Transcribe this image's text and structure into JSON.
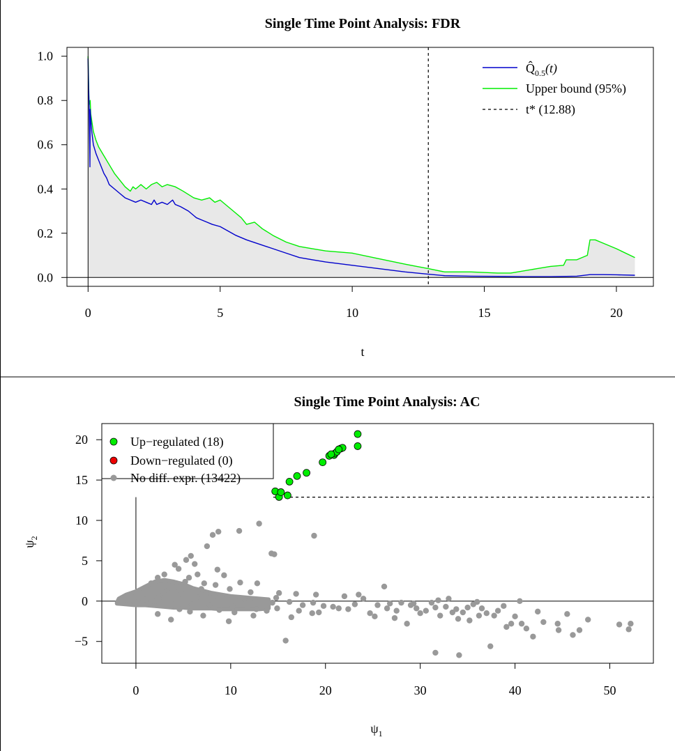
{
  "chart_data": [
    {
      "type": "line",
      "title": "Single Time Point Analysis: FDR",
      "xlabel": "t",
      "ylabel": "",
      "xlim": [
        -0.8,
        21.4
      ],
      "ylim": [
        -0.04,
        1.04
      ],
      "xticks": [
        "0",
        "5",
        "10",
        "15",
        "20"
      ],
      "yticks": [
        "0.0",
        "0.2",
        "0.4",
        "0.6",
        "0.8",
        "1.0"
      ],
      "legend_position": "top-right",
      "legend": [
        {
          "label": "Q̂",
          "sub": "0.5",
          "suffix": "(t)",
          "color": "#0000cc",
          "style": "solid"
        },
        {
          "label": "Upper bound (95%)",
          "color": "#00ee00",
          "style": "solid"
        },
        {
          "label": "t* (12.88)",
          "color": "#000000",
          "style": "dashed"
        }
      ],
      "vline": 12.88,
      "hline": 0,
      "shaded_area_color": "#e8e8e8",
      "series": [
        {
          "name": "Q̂_0.5(t)",
          "color": "#0000cc",
          "x": [
            0.0,
            0.02,
            0.04,
            0.06,
            0.07,
            0.08,
            0.1,
            0.14,
            0.2,
            0.3,
            0.4,
            0.5,
            0.6,
            0.7,
            0.8,
            1.0,
            1.2,
            1.4,
            1.6,
            1.8,
            2.0,
            2.2,
            2.4,
            2.5,
            2.6,
            2.8,
            3.0,
            3.2,
            3.3,
            3.5,
            3.8,
            4.0,
            4.1,
            4.3,
            4.5,
            4.7,
            5.0,
            5.3,
            5.6,
            6.0,
            6.5,
            7.0,
            7.5,
            8.0,
            8.5,
            9.0,
            10.0,
            11.0,
            12.0,
            12.88,
            13.5,
            14.5,
            15.5,
            16.5,
            17.5,
            18.5,
            19.0,
            19.5,
            20.0,
            20.7
          ],
          "y": [
            0.99,
            0.85,
            0.78,
            0.6,
            0.5,
            0.76,
            0.72,
            0.66,
            0.6,
            0.56,
            0.53,
            0.5,
            0.47,
            0.45,
            0.42,
            0.4,
            0.38,
            0.36,
            0.35,
            0.34,
            0.35,
            0.34,
            0.33,
            0.35,
            0.33,
            0.34,
            0.33,
            0.35,
            0.33,
            0.32,
            0.3,
            0.28,
            0.27,
            0.26,
            0.25,
            0.24,
            0.23,
            0.21,
            0.19,
            0.17,
            0.15,
            0.13,
            0.11,
            0.09,
            0.08,
            0.07,
            0.055,
            0.04,
            0.025,
            0.015,
            0.008,
            0.006,
            0.005,
            0.004,
            0.004,
            0.006,
            0.013,
            0.013,
            0.012,
            0.01
          ]
        },
        {
          "name": "Upper bound (95%)",
          "color": "#00ee00",
          "x": [
            0.0,
            0.04,
            0.08,
            0.1,
            0.15,
            0.2,
            0.3,
            0.4,
            0.6,
            0.8,
            1.0,
            1.2,
            1.4,
            1.6,
            1.7,
            1.8,
            2.0,
            2.2,
            2.4,
            2.6,
            2.8,
            3.0,
            3.3,
            3.6,
            4.0,
            4.3,
            4.6,
            4.8,
            5.0,
            5.2,
            5.5,
            5.8,
            6.0,
            6.3,
            6.6,
            7.0,
            7.5,
            8.0,
            8.5,
            9.0,
            10.0,
            11.0,
            12.0,
            12.88,
            13.5,
            14.5,
            15.5,
            16.0,
            17.0,
            17.5,
            18.0,
            18.1,
            18.5,
            18.9,
            19.0,
            19.2,
            19.4,
            20.0,
            20.7
          ],
          "y": [
            1.0,
            0.78,
            0.8,
            0.74,
            0.7,
            0.66,
            0.62,
            0.59,
            0.55,
            0.51,
            0.47,
            0.44,
            0.41,
            0.39,
            0.41,
            0.4,
            0.42,
            0.4,
            0.42,
            0.43,
            0.41,
            0.42,
            0.41,
            0.39,
            0.36,
            0.35,
            0.36,
            0.34,
            0.35,
            0.33,
            0.3,
            0.27,
            0.24,
            0.25,
            0.22,
            0.19,
            0.16,
            0.14,
            0.13,
            0.12,
            0.11,
            0.085,
            0.06,
            0.04,
            0.025,
            0.025,
            0.02,
            0.02,
            0.04,
            0.05,
            0.055,
            0.08,
            0.08,
            0.1,
            0.17,
            0.17,
            0.16,
            0.13,
            0.09
          ]
        }
      ]
    },
    {
      "type": "scatter",
      "title": "Single Time Point Analysis: AC",
      "xlabel": "ψ",
      "xlabel_sub": "1",
      "ylabel": "ψ",
      "ylabel_sub": "2",
      "xlim": [
        -3.6,
        54.6
      ],
      "ylim": [
        -7.7,
        22.0
      ],
      "xticks": [
        "0",
        "10",
        "20",
        "30",
        "40",
        "50"
      ],
      "yticks": [
        "−5",
        "0",
        "5",
        "10",
        "15",
        "20"
      ],
      "legend_position": "top-left",
      "legend": [
        {
          "label": "Up−regulated (18)",
          "color": "#00ee00",
          "outline": true
        },
        {
          "label": "Down−regulated (0)",
          "color": "#ee0000",
          "outline": true
        },
        {
          "label": "No diff. expr. (13422)",
          "color": "#999999",
          "outline": false
        }
      ],
      "threshold_line": {
        "y": 12.88,
        "x_from": 14.5
      },
      "series": [
        {
          "name": "Up−regulated (18)",
          "color": "#00ee00",
          "points": [
            [
              14.7,
              13.6
            ],
            [
              15.1,
              12.9
            ],
            [
              15.3,
              13.5
            ],
            [
              16.0,
              13.1
            ],
            [
              16.2,
              14.8
            ],
            [
              17.0,
              15.5
            ],
            [
              18.0,
              15.9
            ],
            [
              19.7,
              17.2
            ],
            [
              20.4,
              18.0
            ],
            [
              20.9,
              18.1
            ],
            [
              21.0,
              18.3
            ],
            [
              21.2,
              18.5
            ],
            [
              21.6,
              18.9
            ],
            [
              21.8,
              19.0
            ],
            [
              23.4,
              19.2
            ],
            [
              23.4,
              20.7
            ],
            [
              21.4,
              18.8
            ],
            [
              20.6,
              18.2
            ]
          ]
        },
        {
          "name": "No diff. expr. (13422)",
          "color": "#999999",
          "points": [
            [
              0.8,
              1.5
            ],
            [
              1.6,
              2.2
            ],
            [
              2.3,
              2.9
            ],
            [
              3.0,
              3.3
            ],
            [
              4.1,
              4.5
            ],
            [
              4.5,
              4.0
            ],
            [
              5.3,
              5.1
            ],
            [
              5.8,
              5.6
            ],
            [
              6.2,
              4.6
            ],
            [
              7.5,
              6.8
            ],
            [
              8.1,
              8.2
            ],
            [
              8.7,
              8.6
            ],
            [
              10.9,
              8.7
            ],
            [
              13.0,
              9.6
            ],
            [
              14.3,
              5.9
            ],
            [
              14.6,
              5.8
            ],
            [
              18.8,
              8.1
            ],
            [
              12.8,
              2.2
            ],
            [
              11.0,
              2.3
            ],
            [
              9.9,
              1.5
            ],
            [
              8.4,
              2.0
            ],
            [
              7.2,
              2.2
            ],
            [
              5.6,
              2.9
            ],
            [
              3.3,
              1.2
            ],
            [
              6.9,
              1.5
            ],
            [
              15.1,
              1.0
            ],
            [
              16.9,
              0.9
            ],
            [
              19.0,
              0.8
            ],
            [
              22.0,
              0.6
            ],
            [
              24.0,
              0.3
            ],
            [
              26.2,
              1.8
            ],
            [
              23.5,
              0.8
            ],
            [
              25.5,
              -0.5
            ],
            [
              26.5,
              -0.9
            ],
            [
              28.0,
              -0.2
            ],
            [
              27.5,
              -1.2
            ],
            [
              29.0,
              -0.5
            ],
            [
              29.6,
              -0.9
            ],
            [
              30.0,
              -1.5
            ],
            [
              31.2,
              -0.2
            ],
            [
              31.6,
              -0.8
            ],
            [
              32.1,
              -1.8
            ],
            [
              33.0,
              0.3
            ],
            [
              33.4,
              -1.4
            ],
            [
              34.0,
              -2.2
            ],
            [
              35.0,
              -0.8
            ],
            [
              35.6,
              -0.4
            ],
            [
              36.2,
              -1.8
            ],
            [
              37.0,
              -1.5
            ],
            [
              38.2,
              -1.2
            ],
            [
              39.1,
              -3.2
            ],
            [
              39.6,
              -2.8
            ],
            [
              40.5,
              0.0
            ],
            [
              40.7,
              -2.8
            ],
            [
              41.2,
              -3.4
            ],
            [
              41.9,
              -4.4
            ],
            [
              43.0,
              -2.6
            ],
            [
              44.5,
              -2.8
            ],
            [
              46.1,
              -4.2
            ],
            [
              46.8,
              -3.6
            ],
            [
              47.7,
              -2.3
            ],
            [
              51.0,
              -2.9
            ],
            [
              52.0,
              -3.5
            ],
            [
              52.2,
              -2.8
            ],
            [
              31.6,
              -6.4
            ],
            [
              34.1,
              -6.7
            ],
            [
              37.4,
              -5.6
            ],
            [
              37.8,
              -1.8
            ],
            [
              36.5,
              -0.9
            ],
            [
              30.6,
              -1.2
            ],
            [
              28.6,
              -2.8
            ],
            [
              27.3,
              -2.1
            ],
            [
              25.2,
              -1.9
            ],
            [
              22.4,
              -1.0
            ],
            [
              20.8,
              -0.7
            ],
            [
              18.6,
              -1.5
            ],
            [
              16.4,
              -2.0
            ],
            [
              15.8,
              -4.9
            ],
            [
              13.8,
              -1.2
            ],
            [
              12.4,
              -1.8
            ],
            [
              11.8,
              -0.8
            ],
            [
              10.4,
              -1.4
            ],
            [
              9.8,
              -2.5
            ],
            [
              8.8,
              -1.1
            ],
            [
              7.1,
              -1.8
            ],
            [
              5.7,
              -1.3
            ],
            [
              4.6,
              -1.0
            ],
            [
              3.7,
              -2.3
            ],
            [
              2.3,
              -1.6
            ],
            [
              3.4,
              0.6
            ],
            [
              4.8,
              0.9
            ],
            [
              6.4,
              0.5
            ],
            [
              8.3,
              0.6
            ],
            [
              9.6,
              0.4
            ],
            [
              11.4,
              0.3
            ],
            [
              13.1,
              0.0
            ],
            [
              14.4,
              -0.2
            ],
            [
              16.2,
              -0.1
            ],
            [
              17.6,
              -0.5
            ],
            [
              18.7,
              -0.2
            ],
            [
              19.8,
              -0.6
            ],
            [
              21.4,
              -0.9
            ],
            [
              23.1,
              -0.4
            ],
            [
              12.1,
              1.1
            ],
            [
              14.8,
              0.4
            ],
            [
              9.3,
              3.2
            ],
            [
              8.6,
              3.9
            ],
            [
              7.4,
              1.0
            ],
            [
              6.5,
              3.3
            ],
            [
              5.2,
              2.4
            ],
            [
              4.3,
              1.8
            ],
            [
              2.9,
              1.1
            ],
            [
              1.9,
              0.6
            ],
            [
              1.0,
              0.2
            ],
            [
              -0.2,
              0.0
            ],
            [
              1.4,
              -0.4
            ],
            [
              0.6,
              -0.2
            ],
            [
              2.4,
              0.3
            ],
            [
              3.9,
              -0.4
            ],
            [
              5.9,
              -0.4
            ],
            [
              7.8,
              -0.5
            ],
            [
              10.2,
              -0.7
            ],
            [
              12.7,
              -1.0
            ],
            [
              14.9,
              -0.9
            ],
            [
              17.2,
              -1.2
            ],
            [
              19.3,
              -1.4
            ],
            [
              24.7,
              -1.5
            ],
            [
              26.8,
              -0.3
            ],
            [
              32.7,
              -0.7
            ],
            [
              34.5,
              -1.4
            ],
            [
              29.3,
              -0.3
            ],
            [
              31.9,
              0.1
            ],
            [
              33.8,
              -1.0
            ],
            [
              35.2,
              -2.4
            ],
            [
              38.8,
              -0.6
            ],
            [
              36.0,
              -0.1
            ],
            [
              40.0,
              -1.9
            ],
            [
              42.4,
              -1.3
            ],
            [
              44.6,
              -3.6
            ],
            [
              45.5,
              -1.6
            ]
          ]
        }
      ]
    }
  ]
}
